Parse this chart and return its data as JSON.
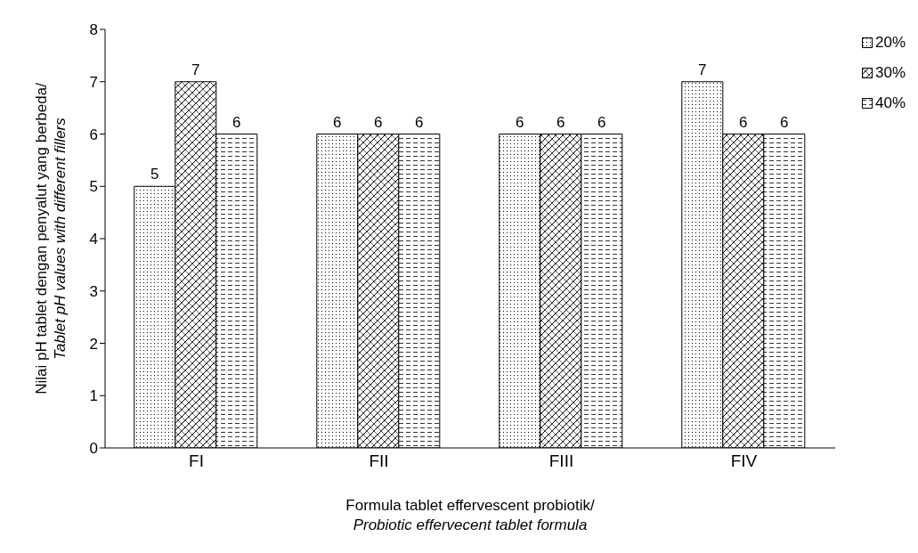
{
  "chart_data": {
    "type": "bar",
    "categories": [
      "FI",
      "FII",
      "FIII",
      "FIV"
    ],
    "series": [
      {
        "name": "20%",
        "color": "#000000",
        "values": [
          5,
          6,
          6,
          7
        ]
      },
      {
        "name": "30%",
        "color": "#000000",
        "values": [
          7,
          6,
          6,
          6
        ]
      },
      {
        "name": "40%",
        "color": "#000000",
        "values": [
          6,
          6,
          6,
          6
        ]
      }
    ],
    "xlabel": "Formula tablet effervescent probiotik/ Probiotic effervecent tablet formula",
    "ylabel": "Nilai pH tablet dengan penyalut yang berbeda/ Tablet pH values with different fillers",
    "ylim": [
      0,
      8
    ],
    "yticks": [
      0,
      1,
      2,
      3,
      4,
      5,
      6,
      7,
      8
    ],
    "grid": false,
    "legend": "top right",
    "data_labels": true
  }
}
